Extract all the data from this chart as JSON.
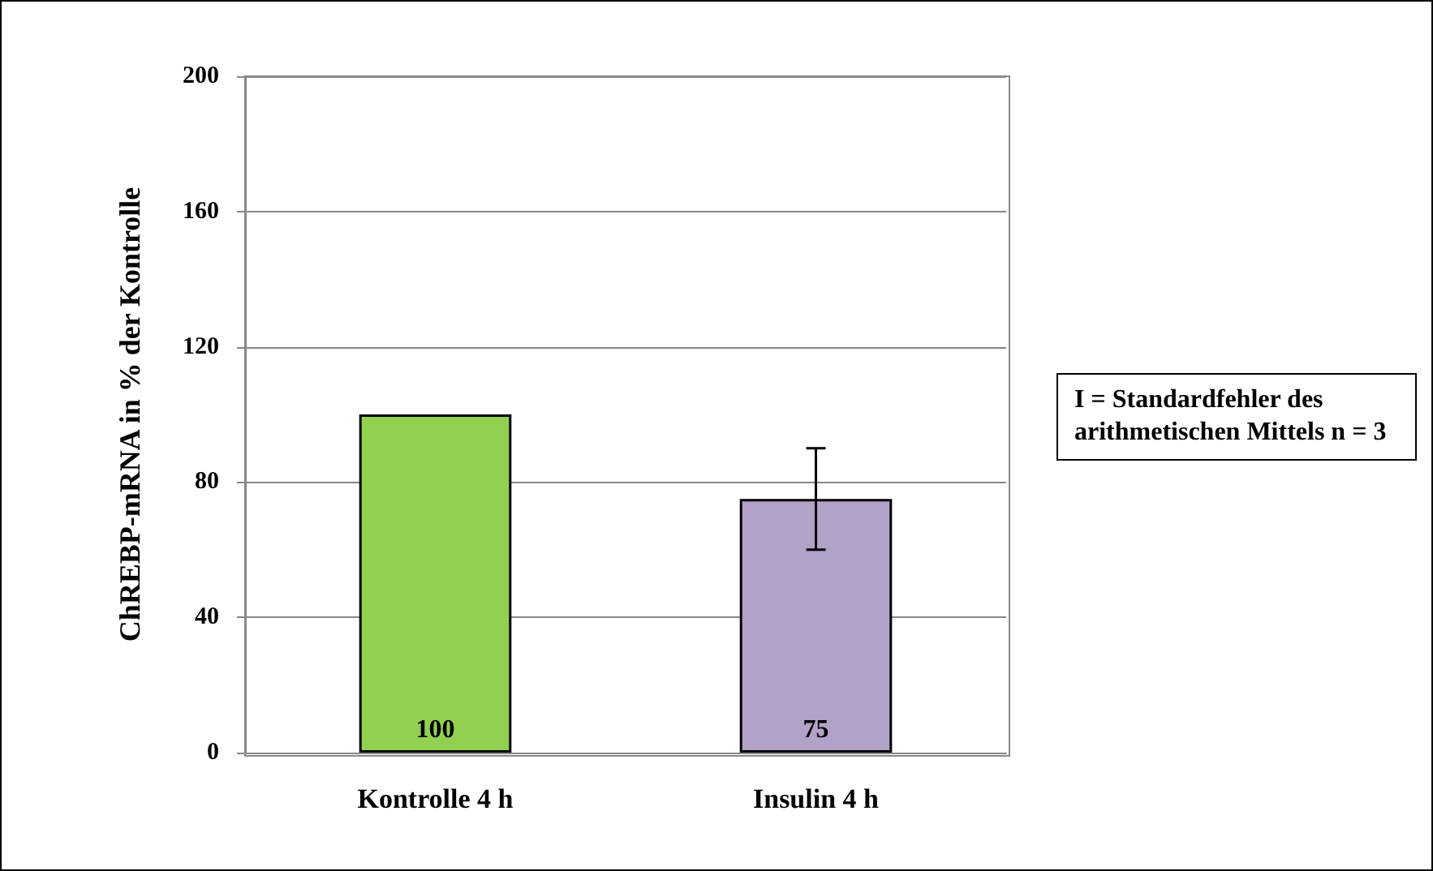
{
  "chart_data": {
    "type": "bar",
    "ylabel": "ChREBP-mRNA in % der Kontrolle",
    "categories": [
      "Kontrolle 4 h",
      "Insulin 4 h"
    ],
    "values": [
      100,
      75
    ],
    "colors": [
      "#92d050",
      "#b3a2c7"
    ],
    "errors": [
      null,
      15
    ],
    "ylim": [
      0,
      200
    ],
    "yticks": [
      0,
      40,
      80,
      120,
      160,
      200
    ],
    "grid": "y",
    "data_labels": true,
    "annotations": [
      "I = Standardfehler des arithmetischen Mittels n = 3"
    ]
  }
}
